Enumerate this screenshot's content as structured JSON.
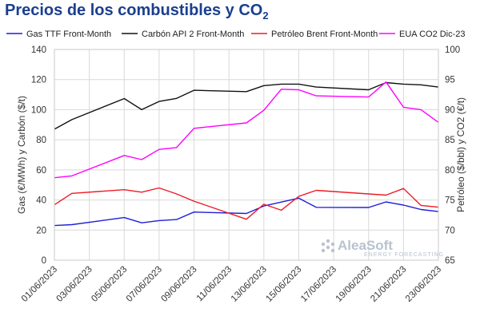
{
  "title": {
    "main": "Precios de los combustibles y CO",
    "sub": "2"
  },
  "watermark": {
    "name": "AleaSoft",
    "tagline": "ENERGY FORECASTING"
  },
  "chart_data": {
    "type": "line",
    "x": [
      "01/06/2023",
      "02/06/2023",
      "05/06/2023",
      "06/06/2023",
      "07/06/2023",
      "08/06/2023",
      "09/06/2023",
      "12/06/2023",
      "13/06/2023",
      "14/06/2023",
      "15/06/2023",
      "16/06/2023",
      "19/06/2023",
      "20/06/2023",
      "21/06/2023",
      "22/06/2023",
      "23/06/2023"
    ],
    "x_ticks": [
      "01/06/2023",
      "03/06/2023",
      "05/06/2023",
      "07/06/2023",
      "09/06/2023",
      "11/06/2023",
      "13/06/2023",
      "15/06/2023",
      "17/06/2023",
      "19/06/2023",
      "21/06/2023",
      "23/06/2023"
    ],
    "x_start": "01/06/2023",
    "series": [
      {
        "name": "Gas TTF Front-Month",
        "axis": "left",
        "color": "#1f1fd6",
        "values": [
          23,
          23.6,
          28.3,
          24.8,
          26.3,
          27,
          32,
          31,
          36,
          38.6,
          41.2,
          35.1,
          35,
          38.7,
          36.6,
          33.7,
          32.3
        ]
      },
      {
        "name": "Carbón API 2 Front-Month",
        "axis": "left",
        "color": "#111111",
        "values": [
          87,
          93.4,
          107.4,
          100,
          105.5,
          107.5,
          112.9,
          112,
          116,
          117,
          117,
          115,
          113.2,
          118,
          117,
          116.5,
          115
        ]
      },
      {
        "name": "Petróleo Brent Front-Month",
        "axis": "right",
        "color": "#ee1c25",
        "values": [
          74.2,
          76.1,
          76.7,
          76.3,
          77,
          76,
          74.8,
          71.8,
          74.3,
          73.3,
          75.6,
          76.6,
          76,
          75.8,
          76.9,
          74.1,
          73.8
        ]
      },
      {
        "name": "EUA CO2 Dic-23",
        "axis": "right",
        "color": "#ff00ff",
        "values": [
          78.7,
          79,
          82.4,
          81.7,
          83.4,
          83.7,
          86.9,
          87.8,
          89.9,
          93.4,
          93.3,
          92.3,
          92.1,
          94.6,
          90.4,
          90,
          87.9
        ]
      }
    ],
    "ylabel_left": "Gas (€/MWh) y Carbón ($/t)",
    "ylabel_right": "Petróleo ($/bbl) y CO2 (€/t)",
    "ylim_left": [
      0,
      140
    ],
    "ylim_right": [
      65,
      100
    ],
    "yticks_left": [
      "0",
      "20",
      "40",
      "60",
      "80",
      "100",
      "120",
      "140"
    ],
    "yticks_right": [
      "65",
      "70",
      "75",
      "80",
      "85",
      "90",
      "95",
      "100"
    ],
    "grid": true,
    "legend_position": "top"
  }
}
